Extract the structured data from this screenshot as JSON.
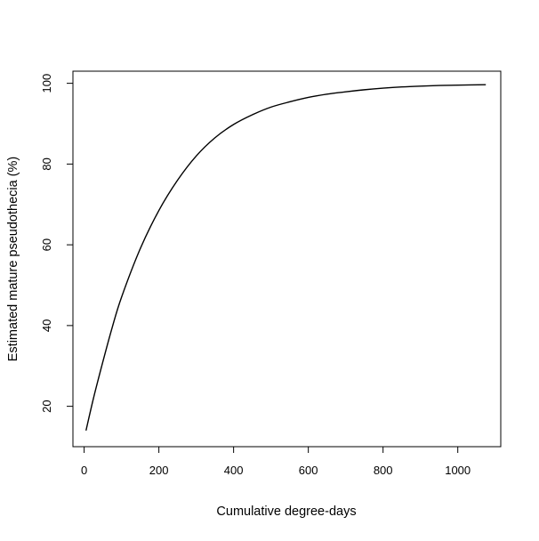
{
  "chart_data": {
    "type": "line",
    "title": "",
    "xlabel": "Cumulative degree-days",
    "ylabel": "Estimated mature pseudothecia (%)",
    "xlim": [
      -30,
      1115
    ],
    "ylim": [
      10,
      103
    ],
    "x_ticks": [
      0,
      200,
      400,
      600,
      800,
      1000
    ],
    "y_ticks": [
      20,
      40,
      60,
      80,
      100
    ],
    "x_tick_labels": [
      "0",
      "200",
      "400",
      "600",
      "800",
      "1000"
    ],
    "y_tick_labels": [
      "20",
      "40",
      "60",
      "80",
      "100"
    ],
    "grid": false,
    "legend": "none",
    "series": [
      {
        "x": [
          5,
          25,
          50,
          75,
          100,
          150,
          200,
          250,
          300,
          350,
          400,
          450,
          500,
          550,
          600,
          650,
          700,
          750,
          800,
          850,
          900,
          950,
          1000,
          1075
        ],
        "y": [
          14,
          22,
          31,
          39.5,
          47,
          59,
          68.5,
          76,
          82,
          86.5,
          89.8,
          92.2,
          94.1,
          95.4,
          96.5,
          97.3,
          97.9,
          98.4,
          98.8,
          99.1,
          99.3,
          99.45,
          99.55,
          99.65
        ]
      }
    ],
    "colors": {
      "line": "#000000",
      "axes": "#000000"
    }
  }
}
